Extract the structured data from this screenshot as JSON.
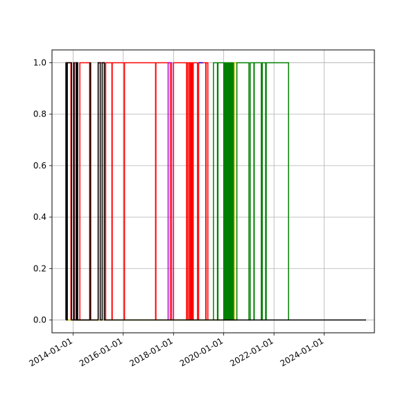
{
  "chart_data": {
    "type": "line",
    "title": "",
    "xlabel": "",
    "ylabel": "",
    "grid": true,
    "x_axis_type": "date",
    "xlim": [
      "2013-03-01",
      "2025-12-31"
    ],
    "ylim": [
      -0.05,
      1.05
    ],
    "x_ticks": [
      "2014-01-01",
      "2016-01-01",
      "2018-01-01",
      "2020-01-01",
      "2022-01-01",
      "2024-01-01"
    ],
    "y_ticks": [
      "0.0",
      "0.2",
      "0.4",
      "0.6",
      "0.8",
      "1.0"
    ],
    "y_tick_values": [
      0.0,
      0.2,
      0.4,
      0.6,
      0.8,
      1.0
    ],
    "series": [
      {
        "color": "#ff0000",
        "points": [
          [
            "2013-09-20",
            0
          ],
          [
            "2013-09-20",
            1
          ],
          [
            "2013-12-01",
            1
          ],
          [
            "2013-12-01",
            0
          ],
          [
            "2014-01-10",
            0
          ],
          [
            "2014-01-10",
            1
          ],
          [
            "2014-03-01",
            1
          ],
          [
            "2014-03-01",
            0
          ],
          [
            "2014-04-10",
            0
          ],
          [
            "2014-04-10",
            1
          ],
          [
            "2014-09-01",
            1
          ],
          [
            "2014-09-01",
            0
          ],
          [
            "2015-01-01",
            0
          ],
          [
            "2015-01-01",
            1
          ],
          [
            "2015-04-01",
            1
          ],
          [
            "2015-04-01",
            0
          ],
          [
            "2015-04-20",
            0
          ],
          [
            "2015-04-20",
            1
          ],
          [
            "2015-07-20",
            1
          ],
          [
            "2015-07-20",
            0
          ],
          [
            "2015-07-25",
            0
          ],
          [
            "2015-07-25",
            1
          ],
          [
            "2016-01-15",
            1
          ],
          [
            "2016-01-15",
            0
          ],
          [
            "2016-01-20",
            0
          ],
          [
            "2016-01-20",
            1
          ],
          [
            "2017-04-15",
            1
          ],
          [
            "2017-04-15",
            0
          ],
          [
            "2017-04-20",
            0
          ],
          [
            "2017-04-20",
            1
          ],
          [
            "2017-11-15",
            1
          ],
          [
            "2017-11-15",
            0
          ],
          [
            "2018-01-01",
            0
          ],
          [
            "2018-01-01",
            1
          ],
          [
            "2018-07-10",
            1
          ],
          [
            "2018-07-10",
            0
          ],
          [
            "2018-07-20",
            0
          ],
          [
            "2018-07-20",
            1
          ],
          [
            "2018-08-10",
            1
          ],
          [
            "2018-08-10",
            0
          ],
          [
            "2018-08-15",
            0
          ],
          [
            "2018-08-15",
            1
          ],
          [
            "2018-09-01",
            1
          ],
          [
            "2018-09-01",
            0
          ],
          [
            "2018-09-05",
            0
          ],
          [
            "2018-09-05",
            1
          ],
          [
            "2018-09-20",
            1
          ],
          [
            "2018-09-20",
            0
          ],
          [
            "2018-09-25",
            0
          ],
          [
            "2018-09-25",
            1
          ],
          [
            "2018-10-10",
            1
          ],
          [
            "2018-10-10",
            0
          ],
          [
            "2018-10-15",
            0
          ],
          [
            "2018-10-15",
            1
          ],
          [
            "2018-12-15",
            1
          ],
          [
            "2018-12-15",
            0
          ],
          [
            "2019-01-01",
            0
          ],
          [
            "2019-01-01",
            1
          ],
          [
            "2019-04-15",
            1
          ],
          [
            "2019-04-15",
            0
          ],
          [
            "2019-04-20",
            0
          ],
          [
            "2019-04-20",
            1
          ],
          [
            "2019-05-15",
            1
          ],
          [
            "2019-05-15",
            0
          ]
        ]
      },
      {
        "color": "#0000ff",
        "points": [
          [
            "2019-01-01",
            1
          ],
          [
            "2019-03-01",
            1
          ]
        ]
      },
      {
        "color": "#bfbf00",
        "points": [
          [
            "2013-09-20",
            0
          ],
          [
            "2014-12-15",
            0
          ],
          [
            "2014-12-15",
            0
          ],
          [
            "2015-02-01",
            0
          ],
          [
            "2020-06-01",
            0
          ],
          [
            "2020-06-01",
            1
          ],
          [
            "2020-07-10",
            1
          ],
          [
            "2020-07-10",
            0
          ]
        ]
      },
      {
        "color": "#bf00bf",
        "points": [
          [
            "2017-10-15",
            0
          ],
          [
            "2017-10-15",
            1
          ],
          [
            "2017-12-05",
            1
          ],
          [
            "2017-12-05",
            0
          ]
        ]
      },
      {
        "color": "#008000",
        "points": [
          [
            "2019-08-05",
            0
          ],
          [
            "2019-08-05",
            1
          ],
          [
            "2019-10-01",
            1
          ],
          [
            "2019-10-01",
            0
          ],
          [
            "2019-10-10",
            0
          ],
          [
            "2019-10-10",
            1
          ],
          [
            "2020-01-01",
            1
          ],
          [
            "2020-01-01",
            0
          ],
          [
            "2020-01-05",
            0
          ],
          [
            "2020-01-05",
            1
          ],
          [
            "2020-01-12",
            1
          ],
          [
            "2020-01-12",
            0
          ],
          [
            "2020-01-19",
            0
          ],
          [
            "2020-01-19",
            1
          ],
          [
            "2020-01-26",
            1
          ],
          [
            "2020-01-26",
            0
          ],
          [
            "2020-02-02",
            0
          ],
          [
            "2020-02-02",
            1
          ],
          [
            "2020-02-09",
            1
          ],
          [
            "2020-02-09",
            0
          ],
          [
            "2020-02-16",
            0
          ],
          [
            "2020-02-16",
            1
          ],
          [
            "2020-02-23",
            1
          ],
          [
            "2020-02-23",
            0
          ],
          [
            "2020-03-01",
            0
          ],
          [
            "2020-03-01",
            1
          ],
          [
            "2020-03-08",
            1
          ],
          [
            "2020-03-08",
            0
          ],
          [
            "2020-03-15",
            0
          ],
          [
            "2020-03-15",
            1
          ],
          [
            "2020-03-22",
            1
          ],
          [
            "2020-03-22",
            0
          ],
          [
            "2020-03-29",
            0
          ],
          [
            "2020-03-29",
            1
          ],
          [
            "2020-04-05",
            1
          ],
          [
            "2020-04-05",
            0
          ],
          [
            "2020-04-12",
            0
          ],
          [
            "2020-04-12",
            1
          ],
          [
            "2020-04-19",
            1
          ],
          [
            "2020-04-19",
            0
          ],
          [
            "2020-04-26",
            0
          ],
          [
            "2020-04-26",
            1
          ],
          [
            "2020-05-03",
            1
          ],
          [
            "2020-05-03",
            0
          ],
          [
            "2020-05-10",
            0
          ],
          [
            "2020-05-10",
            1
          ],
          [
            "2020-05-20",
            1
          ],
          [
            "2020-05-20",
            0
          ],
          [
            "2020-07-10",
            0
          ],
          [
            "2020-07-10",
            1
          ],
          [
            "2021-01-01",
            1
          ],
          [
            "2021-01-01",
            0
          ],
          [
            "2021-01-20",
            0
          ],
          [
            "2021-01-20",
            1
          ],
          [
            "2021-03-15",
            1
          ],
          [
            "2021-03-15",
            0
          ],
          [
            "2021-03-20",
            0
          ],
          [
            "2021-03-20",
            1
          ],
          [
            "2021-07-01",
            1
          ],
          [
            "2021-07-01",
            0
          ],
          [
            "2021-07-15",
            0
          ],
          [
            "2021-07-15",
            1
          ],
          [
            "2021-09-01",
            1
          ],
          [
            "2021-09-01",
            0
          ],
          [
            "2021-09-10",
            0
          ],
          [
            "2021-09-10",
            1
          ],
          [
            "2022-08-01",
            1
          ],
          [
            "2022-08-01",
            0
          ]
        ]
      },
      {
        "color": "#3a0000",
        "points": [
          [
            "2014-01-10",
            0
          ],
          [
            "2014-01-10",
            1
          ],
          [
            "2014-01-20",
            1
          ],
          [
            "2014-01-20",
            0
          ],
          [
            "2014-03-01",
            0
          ],
          [
            "2014-03-01",
            1
          ],
          [
            "2014-03-10",
            1
          ],
          [
            "2014-03-10",
            0
          ],
          [
            "2014-09-01",
            0
          ],
          [
            "2014-09-01",
            1
          ],
          [
            "2014-09-15",
            1
          ],
          [
            "2014-09-15",
            0
          ]
        ]
      },
      {
        "color": "#000000",
        "points": [
          [
            "2013-09-20",
            0
          ],
          [
            "2013-09-20",
            1
          ],
          [
            "2013-10-01",
            1
          ],
          [
            "2013-10-01",
            0
          ],
          [
            "2013-10-10",
            0
          ],
          [
            "2013-10-10",
            1
          ],
          [
            "2013-12-10",
            1
          ],
          [
            "2013-12-10",
            0
          ],
          [
            "2014-02-15",
            0
          ],
          [
            "2014-02-15",
            1
          ],
          [
            "2014-03-01",
            1
          ],
          [
            "2014-03-01",
            0
          ],
          [
            "2015-01-01",
            0
          ],
          [
            "2015-01-01",
            1
          ],
          [
            "2015-02-01",
            1
          ],
          [
            "2015-02-01",
            0
          ],
          [
            "2015-03-01",
            0
          ],
          [
            "2015-03-01",
            1
          ],
          [
            "2015-04-01",
            1
          ],
          [
            "2015-04-01",
            0
          ],
          [
            "2025-09-01",
            0
          ]
        ]
      }
    ]
  }
}
